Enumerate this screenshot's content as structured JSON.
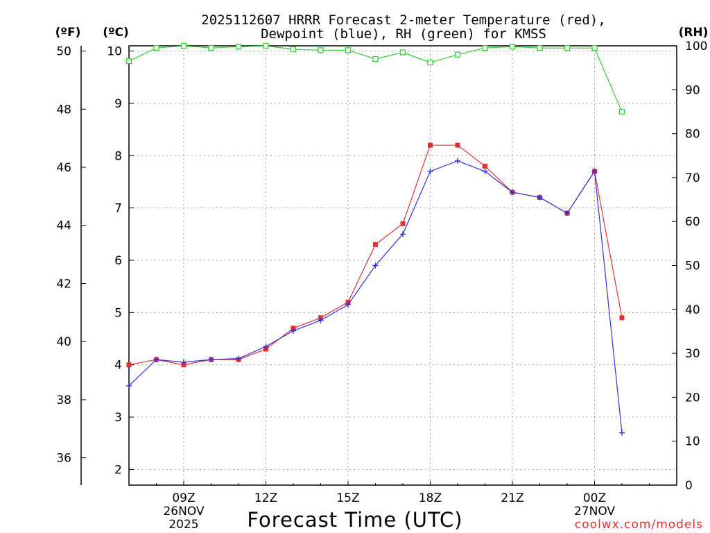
{
  "chart_data": {
    "type": "line",
    "title_line1": "2025112607 HRRR Forecast 2-meter Temperature (red),",
    "title_line2": "Dewpoint (blue), RH (green) for KMSS",
    "xlabel": "Forecast Time (UTC)",
    "credit": "coolwx.com/models",
    "units": {
      "fahrenheit": "(ºF)",
      "celsius": "(ºC)",
      "rh": "(RH)"
    },
    "x_range": [
      7,
      27
    ],
    "x_ticks": [
      {
        "x": 9,
        "label": "09Z",
        "sub1": "26NOV",
        "sub2": "2025"
      },
      {
        "x": 12,
        "label": "12Z",
        "sub1": "",
        "sub2": ""
      },
      {
        "x": 15,
        "label": "15Z",
        "sub1": "",
        "sub2": ""
      },
      {
        "x": 18,
        "label": "18Z",
        "sub1": "",
        "sub2": ""
      },
      {
        "x": 21,
        "label": "21Z",
        "sub1": "",
        "sub2": ""
      },
      {
        "x": 24,
        "label": "00Z",
        "sub1": "27NOV",
        "sub2": ""
      }
    ],
    "celsius_axis": {
      "min": 1.7,
      "max": 10.1,
      "ticks": [
        2,
        3,
        4,
        5,
        6,
        7,
        8,
        9,
        10
      ]
    },
    "fahrenheit_axis": {
      "ticks": [
        36,
        38,
        40,
        42,
        44,
        46,
        48,
        50
      ]
    },
    "rh_axis": {
      "min": 0,
      "max": 100,
      "ticks": [
        0,
        10,
        20,
        30,
        40,
        50,
        60,
        70,
        80,
        90,
        100
      ]
    },
    "x": [
      7,
      8,
      9,
      10,
      11,
      12,
      13,
      14,
      15,
      16,
      17,
      18,
      19,
      20,
      21,
      22,
      23,
      24,
      25
    ],
    "series": [
      {
        "name": "2-meter Temperature",
        "unit": "C",
        "color": "#e03030",
        "marker": "filled-square",
        "values": [
          4.0,
          4.1,
          4.0,
          4.1,
          4.1,
          4.3,
          4.7,
          4.9,
          5.2,
          6.3,
          6.7,
          8.2,
          8.2,
          7.8,
          7.3,
          7.2,
          6.9,
          7.7,
          4.9
        ]
      },
      {
        "name": "Dewpoint",
        "unit": "C",
        "color": "#3030e0",
        "marker": "plus",
        "values": [
          3.6,
          4.1,
          4.05,
          4.1,
          4.12,
          4.35,
          4.65,
          4.85,
          5.15,
          5.9,
          6.5,
          7.7,
          7.9,
          7.7,
          7.3,
          7.2,
          6.9,
          7.7,
          2.7
        ]
      },
      {
        "name": "Relative Humidity",
        "unit": "%",
        "color": "#30d030",
        "marker": "open-square",
        "values": [
          96.5,
          99.5,
          100,
          99.5,
          99.8,
          100,
          99.2,
          99,
          99,
          97,
          98.5,
          96.2,
          98,
          99.5,
          99.8,
          99.5,
          99.5,
          99.5,
          85
        ]
      }
    ]
  }
}
